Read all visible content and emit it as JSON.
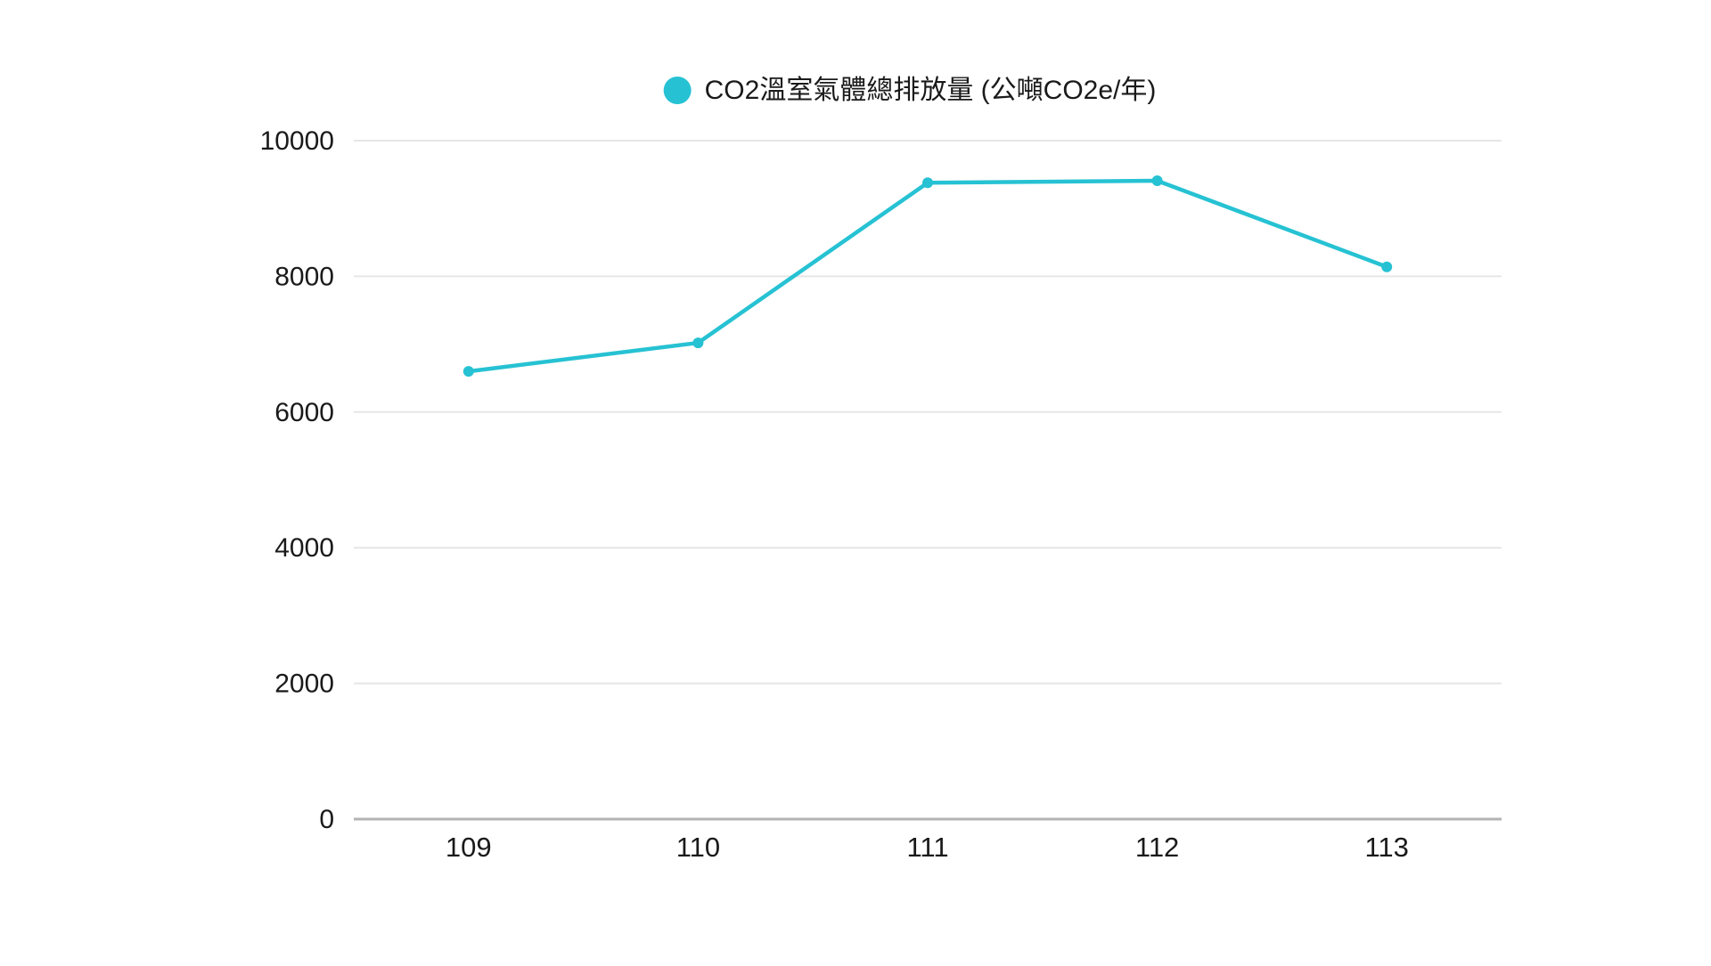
{
  "legend": {
    "label": "CO2溫室氣體總排放量 (公噸CO2e/年)"
  },
  "chart_data": {
    "type": "line",
    "categories": [
      "109",
      "110",
      "111",
      "112",
      "113"
    ],
    "series": [
      {
        "name": "CO2溫室氣體總排放量 (公噸CO2e/年)",
        "values": [
          6600,
          7020,
          9380,
          9410,
          8140
        ]
      }
    ],
    "title": "",
    "xlabel": "",
    "ylabel": "",
    "ylim": [
      0,
      10000
    ],
    "y_ticks": [
      0,
      2000,
      4000,
      6000,
      8000,
      10000
    ],
    "grid": "horizontal-only",
    "legend_position": "top-center",
    "colors": {
      "line": "#26c2d3",
      "point": "#26c2d3",
      "grid": "#e6e6e6",
      "axis": "#b3b3b3",
      "text": "#1a1a1a",
      "background": "#ffffff"
    }
  }
}
